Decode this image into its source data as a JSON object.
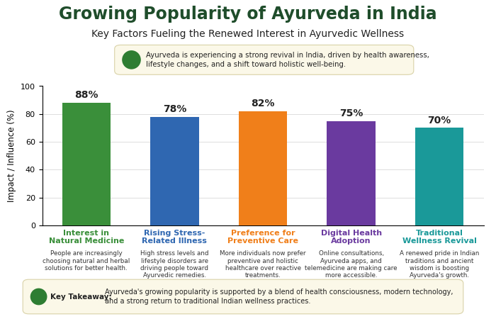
{
  "chart_data": {
    "type": "bar",
    "title": "Growing Popularity of Ayurveda in India",
    "subtitle": "Key Factors Fueling the Renewed Interest in Ayurvedic Wellness",
    "intro": "Ayurveda is experiencing a strong revival in India, driven by health awareness, lifestyle changes, and a shift toward holistic well-being.",
    "y_label": "Impact / Influence (%)",
    "categories": [
      "Interest in Natural Medicine",
      "Rising Stress-Related Illness",
      "Preference for Preventive Care",
      "Digital Health Adoption",
      "Traditional Wellness Revival"
    ],
    "values": [
      88,
      78,
      82,
      75,
      70
    ],
    "value_labels": [
      "88%",
      "78%",
      "82%",
      "75%",
      "70%"
    ],
    "colors": [
      "#3a8f3a",
      "#2f67b1",
      "#f07f1a",
      "#6a3a9f",
      "#1a9999"
    ],
    "descriptions": [
      "People are increasingly choosing natural and herbal solutions for better health.",
      "High stress levels and lifestyle disorders are driving people toward Ayurvedic remedies.",
      "More individuals now prefer preventive and holistic healthcare over reactive treatments.",
      "Online consultations, Ayurveda apps, and telemedicine are making care more accessible.",
      "A renewed pride in Indian traditions and ancient wisdom is boosting Ayurveda's growth."
    ],
    "takeaway_label": "Key Takeaway:",
    "takeaway": "Ayurveda's growing popularity is supported by a blend of health consciousness, modern technology, and a strong return to traditional Indian wellness practices.",
    "ylim": [
      0,
      100
    ],
    "yticks": [
      0,
      20,
      40,
      60,
      80,
      100
    ],
    "grid": true,
    "data_labels": true
  }
}
